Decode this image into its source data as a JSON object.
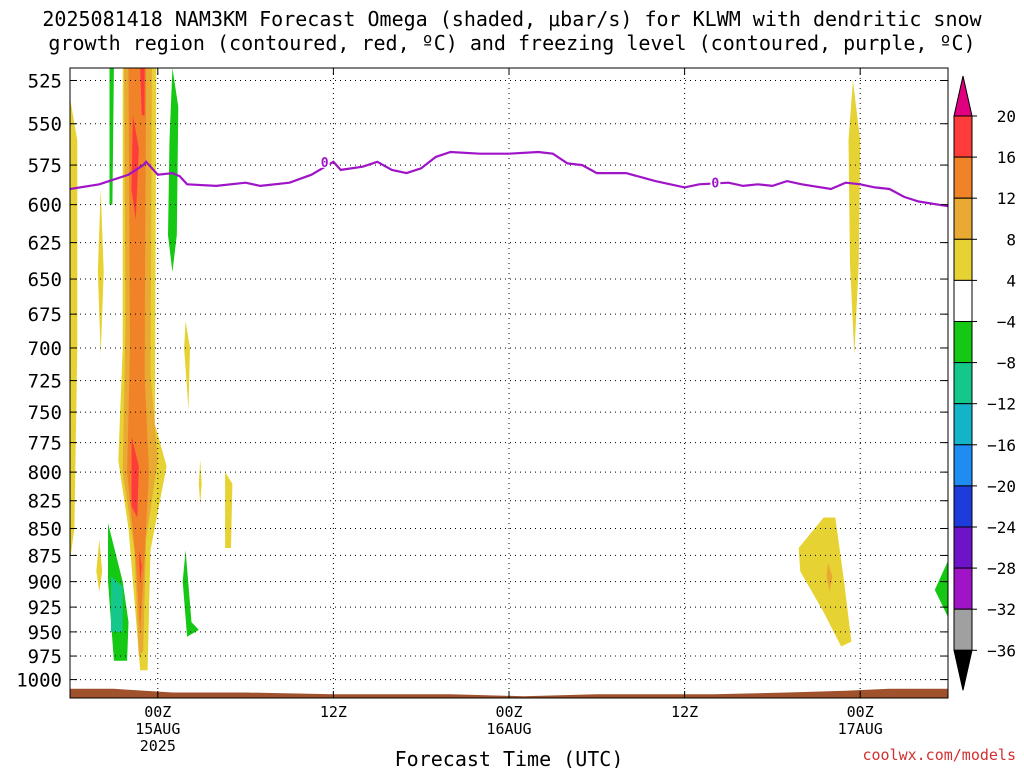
{
  "title": {
    "line1": "2025081418 NAM3KM Forecast Omega (shaded, μbar/s) for KLWM with dendritic snow",
    "line2": "growth region (contoured, red, ºC) and freezing level (contoured, purple, ºC)"
  },
  "credit": "coolwx.com/models",
  "chart_data": {
    "type": "heatmap",
    "title": "2025081418 NAM3KM Forecast Omega (shaded, μbar/s) for KLWM with dendritic snow growth region (contoured, red, ºC) and freezing level (contoured, purple, ºC)",
    "xlabel": "Forecast Time (UTC)",
    "ylabel": "",
    "x_ticks": [
      {
        "hour": 6,
        "lines": [
          "00Z",
          "15AUG",
          "2025"
        ]
      },
      {
        "hour": 18,
        "lines": [
          "12Z"
        ]
      },
      {
        "hour": 30,
        "lines": [
          "00Z",
          "16AUG"
        ]
      },
      {
        "hour": 42,
        "lines": [
          "12Z"
        ]
      },
      {
        "hour": 54,
        "lines": [
          "00Z",
          "17AUG"
        ]
      }
    ],
    "xlim": [
      0,
      60
    ],
    "y_ticks": [
      525,
      550,
      575,
      600,
      625,
      650,
      675,
      700,
      725,
      750,
      775,
      800,
      825,
      850,
      875,
      900,
      925,
      950,
      975,
      1000
    ],
    "ylim": [
      1020,
      518
    ],
    "yscale": "log",
    "grid": true,
    "colorbar": {
      "labels": [
        "20",
        "16",
        "12",
        "8",
        "4",
        "−4",
        "−8",
        "−12",
        "−16",
        "−20",
        "−24",
        "−28",
        "−32",
        "−36"
      ],
      "colors": [
        "#e0007f",
        "#ff3c3c",
        "#f08228",
        "#e8aa32",
        "#e6d232",
        "#ffffff",
        "#14c814",
        "#14c88c",
        "#14b4c8",
        "#1e8cf0",
        "#1e3cdc",
        "#6e14c8",
        "#a014c8",
        "#a0a0a0",
        "#000000"
      ]
    },
    "freezing_level": {
      "label": "0",
      "color": "#a014c8",
      "points": [
        [
          0,
          590
        ],
        [
          2,
          587
        ],
        [
          4,
          581
        ],
        [
          5,
          575
        ],
        [
          5.2,
          573
        ],
        [
          6,
          581
        ],
        [
          7,
          580
        ],
        [
          7.5,
          582
        ],
        [
          8,
          587
        ],
        [
          10,
          588
        ],
        [
          12,
          586
        ],
        [
          13,
          588
        ],
        [
          15,
          586
        ],
        [
          16.5,
          581
        ],
        [
          18,
          573
        ],
        [
          18.5,
          578
        ],
        [
          20,
          576
        ],
        [
          21,
          573
        ],
        [
          22,
          578
        ],
        [
          23,
          580
        ],
        [
          24,
          577
        ],
        [
          25,
          570
        ],
        [
          26,
          567
        ],
        [
          28,
          568
        ],
        [
          30,
          568
        ],
        [
          32,
          567
        ],
        [
          33,
          568
        ],
        [
          34,
          574
        ],
        [
          35,
          575
        ],
        [
          36,
          580
        ],
        [
          38,
          580
        ],
        [
          40,
          585
        ],
        [
          42,
          589
        ],
        [
          43,
          587
        ],
        [
          45,
          586
        ],
        [
          46,
          588
        ],
        [
          47,
          587
        ],
        [
          48,
          588
        ],
        [
          49,
          585
        ],
        [
          50,
          587
        ],
        [
          52,
          590
        ],
        [
          53,
          586
        ],
        [
          54,
          587
        ],
        [
          55,
          589
        ],
        [
          56,
          590
        ],
        [
          57,
          595
        ],
        [
          58,
          598
        ],
        [
          60,
          601
        ]
      ]
    },
    "omega_regions": [
      {
        "color": "#e6d232",
        "points": [
          [
            0,
            535
          ],
          [
            0.5,
            560
          ],
          [
            0.5,
            700
          ],
          [
            0.3,
            850
          ],
          [
            0,
            880
          ]
        ]
      },
      {
        "color": "#e6d232",
        "points": [
          [
            2.1,
            590
          ],
          [
            2.3,
            645
          ],
          [
            2.1,
            705
          ],
          [
            1.9,
            645
          ]
        ]
      },
      {
        "color": "#e6d232",
        "points": [
          [
            2.0,
            860
          ],
          [
            2.2,
            890
          ],
          [
            2.0,
            910
          ],
          [
            1.8,
            890
          ]
        ]
      },
      {
        "color": "#e6d232",
        "points": [
          [
            3.6,
            518
          ],
          [
            5.9,
            518
          ],
          [
            5.8,
            760
          ],
          [
            6.6,
            795
          ],
          [
            5.5,
            870
          ],
          [
            5.3,
            990
          ],
          [
            4.8,
            990
          ],
          [
            4.0,
            850
          ],
          [
            3.3,
            790
          ],
          [
            3.6,
            700
          ]
        ]
      },
      {
        "color": "#e8aa32",
        "points": [
          [
            3.7,
            518
          ],
          [
            5.6,
            518
          ],
          [
            5.5,
            720
          ],
          [
            6.0,
            790
          ],
          [
            5.2,
            860
          ],
          [
            5.0,
            970
          ],
          [
            4.7,
            975
          ],
          [
            4.4,
            870
          ],
          [
            3.6,
            800
          ],
          [
            3.8,
            680
          ]
        ]
      },
      {
        "color": "#f08228",
        "points": [
          [
            4.0,
            518
          ],
          [
            5.2,
            518
          ],
          [
            5.1,
            720
          ],
          [
            5.4,
            800
          ],
          [
            5.0,
            900
          ],
          [
            4.8,
            950
          ],
          [
            4.5,
            880
          ],
          [
            3.9,
            800
          ],
          [
            4.1,
            700
          ]
        ]
      },
      {
        "color": "#ff3c3c",
        "points": [
          [
            4.3,
            545
          ],
          [
            4.7,
            565
          ],
          [
            4.5,
            610
          ],
          [
            4.2,
            590
          ]
        ]
      },
      {
        "color": "#ff3c3c",
        "points": [
          [
            4.2,
            770
          ],
          [
            4.7,
            795
          ],
          [
            4.6,
            840
          ],
          [
            4.2,
            830
          ]
        ]
      },
      {
        "color": "#ff3c3c",
        "points": [
          [
            4.8,
            518
          ],
          [
            5.1,
            518
          ],
          [
            5.1,
            545
          ],
          [
            4.9,
            545
          ]
        ]
      },
      {
        "color": "#ff3c3c",
        "points": [
          [
            4.7,
            870
          ],
          [
            4.9,
            885
          ],
          [
            4.8,
            900
          ]
        ]
      },
      {
        "color": "#14c814",
        "points": [
          [
            2.7,
            518
          ],
          [
            3.0,
            518
          ],
          [
            2.9,
            600
          ],
          [
            2.7,
            600
          ]
        ]
      },
      {
        "color": "#14c814",
        "points": [
          [
            7.0,
            518
          ],
          [
            7.4,
            540
          ],
          [
            7.3,
            620
          ],
          [
            7.0,
            645
          ],
          [
            6.7,
            620
          ],
          [
            6.8,
            560
          ]
        ]
      },
      {
        "color": "#14c814",
        "points": [
          [
            2.6,
            845
          ],
          [
            3.6,
            900
          ],
          [
            4.0,
            940
          ],
          [
            3.9,
            980
          ],
          [
            3.0,
            980
          ],
          [
            2.6,
            900
          ]
        ]
      },
      {
        "color": "#14c88c",
        "points": [
          [
            2.8,
            895
          ],
          [
            3.6,
            905
          ],
          [
            3.6,
            950
          ],
          [
            2.8,
            950
          ]
        ]
      },
      {
        "color": "#14c814",
        "points": [
          [
            7.9,
            870
          ],
          [
            8.3,
            940
          ],
          [
            8.8,
            948
          ],
          [
            8.0,
            955
          ],
          [
            7.7,
            900
          ]
        ]
      },
      {
        "color": "#e6d232",
        "points": [
          [
            7.9,
            680
          ],
          [
            8.2,
            700
          ],
          [
            8.1,
            748
          ],
          [
            7.8,
            700
          ]
        ]
      },
      {
        "color": "#e6d232",
        "points": [
          [
            8.9,
            790
          ],
          [
            9.0,
            810
          ],
          [
            8.9,
            828
          ],
          [
            8.8,
            810
          ]
        ]
      },
      {
        "color": "#e6d232",
        "points": [
          [
            10.6,
            800
          ],
          [
            11.1,
            810
          ],
          [
            11.0,
            868
          ],
          [
            10.6,
            868
          ]
        ]
      },
      {
        "color": "#e6d232",
        "points": [
          [
            53.5,
            525
          ],
          [
            54.0,
            560
          ],
          [
            53.9,
            640
          ],
          [
            53.6,
            705
          ],
          [
            53.3,
            640
          ],
          [
            53.2,
            560
          ]
        ]
      },
      {
        "color": "#e6d232",
        "points": [
          [
            49.8,
            868
          ],
          [
            51.5,
            840
          ],
          [
            52.3,
            840
          ],
          [
            52.9,
            900
          ],
          [
            53.4,
            960
          ],
          [
            52.7,
            965
          ],
          [
            51.5,
            930
          ],
          [
            49.9,
            890
          ]
        ]
      },
      {
        "color": "#e8aa32",
        "points": [
          [
            51.8,
            882
          ],
          [
            52.1,
            895
          ],
          [
            51.9,
            910
          ],
          [
            51.7,
            895
          ]
        ]
      },
      {
        "color": "#14c814",
        "points": [
          [
            60,
            880
          ],
          [
            60,
            935
          ],
          [
            59.1,
            908
          ]
        ]
      }
    ],
    "terrain": {
      "color": "#a0522d",
      "top_points": [
        [
          0,
          1010
        ],
        [
          3,
          1010
        ],
        [
          7,
          1014
        ],
        [
          12,
          1014
        ],
        [
          18,
          1016
        ],
        [
          26,
          1016
        ],
        [
          31,
          1018
        ],
        [
          36,
          1016
        ],
        [
          44,
          1016
        ],
        [
          49,
          1014
        ],
        [
          53,
          1012
        ],
        [
          56,
          1010
        ],
        [
          60,
          1010
        ]
      ],
      "bottom": 1022
    }
  }
}
